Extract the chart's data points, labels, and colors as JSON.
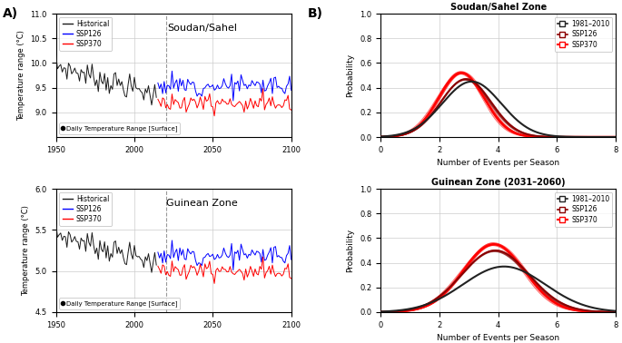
{
  "panel_A_label": "A)",
  "panel_B_label": "B)",
  "top_left": {
    "title": "Soudan/Sahel",
    "ylabel": "Temperature range (°C)",
    "ylim": [
      8.5,
      11.0
    ],
    "yticks": [
      9.0,
      9.5,
      10.0,
      10.5,
      11.0
    ],
    "xlim": [
      1950,
      2100
    ],
    "xticks": [
      1950,
      2000,
      2050,
      2100
    ],
    "dashed_x": 2020,
    "hist_trend_start": 9.95,
    "hist_trend_end": 9.35,
    "hist_noise": 0.12,
    "ssp126_mean": 9.5,
    "ssp126_noise": 0.1,
    "ssp370_mean": 9.2,
    "ssp370_noise": 0.1,
    "note": "Daily Temperature Range [Surface]"
  },
  "bottom_left": {
    "title": "Guinean Zone",
    "ylabel": "Temperature range (°C)",
    "ylim": [
      4.5,
      6.0
    ],
    "yticks": [
      4.5,
      5.0,
      5.5,
      6.0
    ],
    "xlim": [
      1950,
      2100
    ],
    "xticks": [
      1950,
      2000,
      2050,
      2100
    ],
    "dashed_x": 2020,
    "hist_trend_start": 5.45,
    "hist_trend_end": 5.1,
    "hist_noise": 0.07,
    "ssp126_mean": 5.15,
    "ssp126_noise": 0.06,
    "ssp370_mean": 5.02,
    "ssp370_noise": 0.06,
    "note": "Daily Temperature Range [Surface]"
  },
  "top_right": {
    "title": "Soudan/Sahel Zone",
    "xlabel": "Number of Events per Season",
    "ylabel": "Probability",
    "xlim": [
      0,
      8
    ],
    "xticks": [
      0,
      2,
      4,
      6,
      8
    ],
    "ylim": [
      0.0,
      1.0
    ],
    "yticks": [
      0.0,
      0.2,
      0.4,
      0.6,
      0.8,
      1.0
    ],
    "hist_mu": 3.1,
    "hist_sigma": 1.0,
    "hist_peak": 0.45,
    "ssp126_mu": 2.9,
    "ssp126_sigma": 0.85,
    "ssp126_peak": 0.47,
    "ssp370_mu": 2.75,
    "ssp370_sigma": 0.78,
    "ssp370_peak": 0.52,
    "legend": [
      "1981–2010",
      "SSP126",
      "SSP370"
    ]
  },
  "bottom_right": {
    "title": "Guinean Zone (2031–2060)",
    "xlabel": "Number of Events per Season",
    "ylabel": "Probability",
    "xlim": [
      0,
      8
    ],
    "xticks": [
      0,
      2,
      4,
      6,
      8
    ],
    "ylim": [
      0.0,
      1.0
    ],
    "yticks": [
      0.0,
      0.2,
      0.4,
      0.6,
      0.8,
      1.0
    ],
    "hist_mu": 4.2,
    "hist_sigma": 1.4,
    "hist_peak": 0.37,
    "ssp126_mu": 3.9,
    "ssp126_sigma": 1.15,
    "ssp126_peak": 0.5,
    "ssp370_mu": 3.85,
    "ssp370_sigma": 1.05,
    "ssp370_peak": 0.55,
    "legend": [
      "1981–2010",
      "SSP126",
      "SSP370"
    ]
  },
  "colors": {
    "historical": "#1a1a1a",
    "ssp126": "#8B0000",
    "ssp370": "#FF0000",
    "grid": "#cccccc"
  },
  "bg_color": "#ffffff"
}
